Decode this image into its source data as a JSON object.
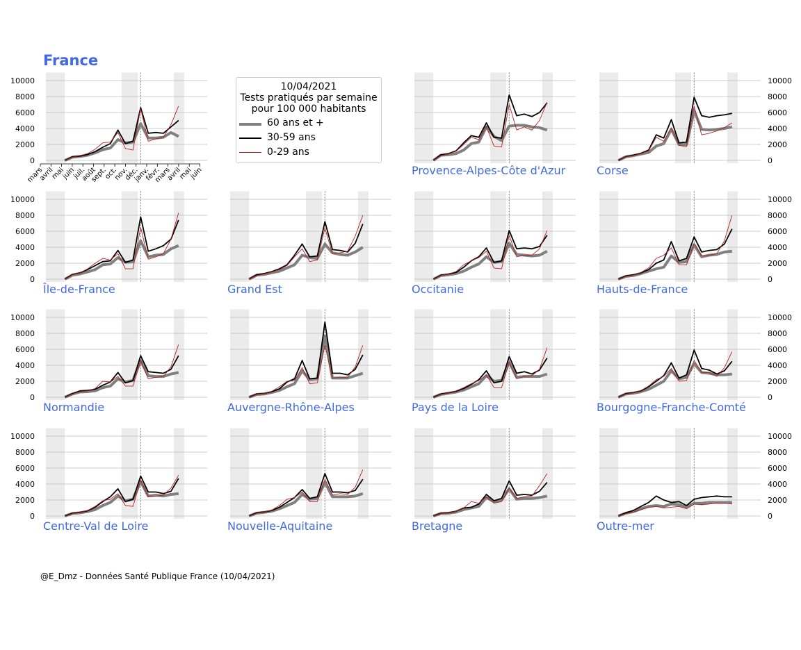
{
  "title": "France",
  "legend": {
    "date": "10/04/2021",
    "line1": "Tests pratiqués par semaine",
    "line2": "pour 100 000 habitants",
    "items": [
      {
        "label": "60 ans et +",
        "color": "#808080"
      },
      {
        "label": "30-59 ans",
        "color": "#000000"
      },
      {
        "label": "0-29 ans",
        "color": "#b22222"
      }
    ]
  },
  "footer": "@E_Dmz - Données Santé Publique France (10/04/2021)",
  "colors": {
    "title": "#4169e1",
    "shade": "#ebebeb",
    "grid": "#bbbbbb",
    "older": "#808080",
    "mid": "#000000",
    "young": "#b22222"
  },
  "chart_data": {
    "type": "line",
    "ylim": [
      0,
      11000
    ],
    "yticks": [
      "0",
      "2000",
      "4000",
      "6000",
      "8000",
      "10000"
    ],
    "month_ticks": [
      "mars",
      "avril",
      "mai",
      "juin",
      "juil.",
      "août",
      "sept.",
      "oct.",
      "nov.",
      "déc.",
      "janv.",
      "févr.",
      "mars",
      "avril",
      "mai",
      "juin"
    ],
    "x_months": [
      "mars",
      "mai",
      "juil.",
      "sept.",
      "nov.",
      "janv.",
      "mars",
      "mai"
    ],
    "series_names": [
      "60 ans et +",
      "30-59 ans",
      "0-29 ans"
    ],
    "panels": [
      {
        "name": "France",
        "label_shown": false,
        "s60": [
          0,
          400,
          500,
          650,
          950,
          1350,
          1550,
          2600,
          2200,
          2300,
          4600,
          2800,
          2800,
          2900,
          3500,
          3000
        ],
        "s30": [
          0,
          450,
          550,
          750,
          1100,
          1650,
          2100,
          3800,
          2100,
          2400,
          6600,
          3400,
          3500,
          3400,
          4200,
          5000
        ],
        "s0": [
          0,
          400,
          600,
          850,
          1400,
          2200,
          2300,
          3500,
          1500,
          1300,
          6500,
          2400,
          2700,
          2900,
          4500,
          6800
        ]
      },
      {
        "name": "Provence-Alpes-Côte d'Azur",
        "label_shown": true,
        "s60": [
          0,
          650,
          700,
          850,
          1300,
          2100,
          2300,
          4200,
          3000,
          2500,
          4300,
          4400,
          4400,
          4200,
          4100,
          3800
        ],
        "s30": [
          0,
          700,
          850,
          1200,
          2200,
          3100,
          2900,
          4700,
          2900,
          2800,
          8200,
          5600,
          5800,
          5500,
          6000,
          7200
        ],
        "s0": [
          0,
          600,
          800,
          1150,
          2000,
          2900,
          2600,
          4200,
          1800,
          1700,
          7000,
          3800,
          4200,
          3800,
          5000,
          7300
        ]
      },
      {
        "name": "Corse",
        "label_shown": true,
        "s60": [
          0,
          450,
          600,
          800,
          1000,
          1800,
          2100,
          3900,
          2000,
          2000,
          6200,
          3900,
          3800,
          3900,
          4000,
          4200
        ],
        "s30": [
          0,
          500,
          650,
          900,
          1300,
          3200,
          2800,
          5100,
          2200,
          2300,
          7900,
          5600,
          5400,
          5600,
          5700,
          5900
        ],
        "s0": [
          0,
          500,
          600,
          850,
          1200,
          2900,
          2400,
          4100,
          1900,
          1700,
          6800,
          3200,
          3400,
          3700,
          4100,
          4700
        ]
      },
      {
        "name": "Île-de-France",
        "label_shown": true,
        "s60": [
          0,
          500,
          650,
          900,
          1200,
          1800,
          1900,
          2700,
          2100,
          2200,
          4800,
          2800,
          3000,
          3100,
          3800,
          4200
        ],
        "s30": [
          0,
          600,
          800,
          1200,
          1700,
          2200,
          2300,
          3600,
          2100,
          2400,
          7800,
          3500,
          3800,
          4200,
          5000,
          7400
        ],
        "s0": [
          0,
          550,
          800,
          1300,
          2000,
          2600,
          2400,
          3200,
          1300,
          1300,
          6500,
          2500,
          2800,
          3200,
          5000,
          8300
        ]
      },
      {
        "name": "Grand Est",
        "label_shown": true,
        "s60": [
          0,
          500,
          600,
          800,
          1000,
          1400,
          1800,
          3000,
          2700,
          2600,
          4400,
          3300,
          3100,
          3000,
          3400,
          4000
        ],
        "s30": [
          0,
          550,
          700,
          950,
          1300,
          1800,
          3000,
          4400,
          2800,
          2900,
          7200,
          3700,
          3600,
          3400,
          4500,
          6900
        ],
        "s0": [
          0,
          450,
          650,
          900,
          1200,
          1700,
          2800,
          3800,
          2200,
          2400,
          6400,
          3200,
          3300,
          3500,
          5400,
          8000
        ]
      },
      {
        "name": "Occitanie",
        "label_shown": true,
        "s60": [
          0,
          450,
          550,
          700,
          1000,
          1500,
          1900,
          2800,
          2100,
          2200,
          4500,
          3100,
          3000,
          2900,
          3000,
          3500
        ],
        "s30": [
          0,
          500,
          650,
          850,
          1500,
          2300,
          2800,
          3900,
          2100,
          2300,
          6100,
          3800,
          3900,
          3800,
          4100,
          5500
        ],
        "s0": [
          0,
          450,
          650,
          950,
          1800,
          2300,
          2700,
          3500,
          1400,
          1300,
          5500,
          2800,
          3000,
          3000,
          3800,
          6100
        ]
      },
      {
        "name": "Hauts-de-France",
        "label_shown": true,
        "s60": [
          0,
          350,
          450,
          700,
          1000,
          1300,
          1500,
          2900,
          2100,
          2200,
          4300,
          2800,
          3000,
          3100,
          3400,
          3500
        ],
        "s30": [
          0,
          400,
          550,
          800,
          1200,
          2000,
          2400,
          4700,
          2300,
          2600,
          5300,
          3400,
          3600,
          3700,
          4400,
          6300
        ],
        "s0": [
          0,
          350,
          500,
          850,
          1400,
          2600,
          3000,
          3900,
          1800,
          1800,
          4500,
          2900,
          3000,
          3200,
          4800,
          8000
        ]
      },
      {
        "name": "Normandie",
        "label_shown": true,
        "s60": [
          0,
          400,
          650,
          700,
          800,
          1200,
          1400,
          2300,
          1900,
          2100,
          4600,
          2700,
          2600,
          2600,
          2900,
          3100
        ],
        "s30": [
          0,
          450,
          800,
          850,
          1000,
          1500,
          1900,
          3100,
          1800,
          2100,
          5200,
          3200,
          3100,
          3000,
          3500,
          5200
        ],
        "s0": [
          0,
          400,
          700,
          800,
          1100,
          2000,
          1900,
          2600,
          1400,
          1400,
          4600,
          2300,
          2500,
          2600,
          3800,
          6600
        ]
      },
      {
        "name": "Auvergne-Rhône-Alpes",
        "label_shown": true,
        "s60": [
          0,
          350,
          400,
          600,
          850,
          1300,
          1700,
          3300,
          2200,
          2300,
          7700,
          2400,
          2400,
          2400,
          2700,
          3000
        ],
        "s30": [
          0,
          400,
          480,
          700,
          1050,
          1900,
          2300,
          4600,
          2300,
          2400,
          9400,
          3000,
          3000,
          2800,
          3500,
          5300
        ],
        "s0": [
          0,
          350,
          460,
          750,
          1300,
          2000,
          2100,
          3700,
          1700,
          1800,
          6500,
          2400,
          2500,
          2500,
          3800,
          6500
        ]
      },
      {
        "name": "Pays de la Loire",
        "label_shown": true,
        "s60": [
          0,
          350,
          500,
          650,
          900,
          1300,
          1700,
          2700,
          2000,
          2100,
          4400,
          2500,
          2600,
          2600,
          2600,
          2900
        ],
        "s30": [
          0,
          400,
          560,
          750,
          1100,
          1600,
          2200,
          3300,
          1800,
          2000,
          5100,
          3000,
          3200,
          2900,
          3400,
          4900
        ],
        "s0": [
          0,
          350,
          550,
          800,
          1200,
          1700,
          2100,
          2800,
          1200,
          1200,
          4400,
          2300,
          2600,
          2700,
          3500,
          6200
        ]
      },
      {
        "name": "Bourgogne-Franche-Comté",
        "label_shown": true,
        "s60": [
          0,
          400,
          500,
          700,
          1000,
          1500,
          2000,
          3300,
          2300,
          2500,
          4200,
          3100,
          3000,
          2800,
          2800,
          2900
        ],
        "s30": [
          0,
          450,
          580,
          800,
          1300,
          2000,
          2700,
          4300,
          2400,
          2800,
          5900,
          3600,
          3400,
          2900,
          3300,
          4500
        ],
        "s0": [
          0,
          400,
          550,
          850,
          1400,
          2200,
          2600,
          3600,
          2000,
          2100,
          4600,
          3100,
          3100,
          2600,
          3700,
          5700
        ]
      },
      {
        "name": "Centre-Val de Loire",
        "label_shown": true,
        "s60": [
          0,
          300,
          400,
          550,
          800,
          1300,
          1700,
          2500,
          1900,
          2100,
          4300,
          2500,
          2600,
          2500,
          2700,
          2800
        ],
        "s30": [
          0,
          350,
          450,
          650,
          1100,
          1800,
          2400,
          3400,
          1800,
          2100,
          5000,
          3000,
          3000,
          2800,
          3100,
          4700
        ],
        "s0": [
          0,
          300,
          450,
          700,
          1200,
          1900,
          2100,
          2800,
          1300,
          1200,
          4500,
          2400,
          2500,
          2600,
          3500,
          5100
        ]
      },
      {
        "name": "Nouvelle-Aquitaine",
        "label_shown": true,
        "s60": [
          0,
          350,
          450,
          600,
          900,
          1300,
          1700,
          2700,
          2100,
          2200,
          4200,
          2400,
          2400,
          2400,
          2500,
          2800
        ],
        "s30": [
          0,
          400,
          500,
          700,
          1100,
          1700,
          2300,
          3300,
          2200,
          2400,
          5300,
          3000,
          3000,
          2900,
          3200,
          4600
        ],
        "s0": [
          0,
          350,
          500,
          750,
          1300,
          2100,
          2300,
          3000,
          1800,
          1800,
          4600,
          2600,
          2800,
          2700,
          3600,
          5800
        ]
      },
      {
        "name": "Bretagne",
        "label_shown": true,
        "s60": [
          0,
          300,
          350,
          500,
          800,
          1000,
          1200,
          2300,
          1800,
          2000,
          3400,
          2100,
          2200,
          2200,
          2300,
          2500
        ],
        "s30": [
          0,
          350,
          400,
          600,
          1000,
          1100,
          1500,
          2700,
          1900,
          2200,
          4400,
          2600,
          2700,
          2600,
          3100,
          4200
        ],
        "s0": [
          0,
          320,
          380,
          600,
          1000,
          1800,
          1600,
          2400,
          1600,
          1800,
          3500,
          2200,
          2400,
          2500,
          3800,
          5300
        ]
      },
      {
        "name": "Outre-mer",
        "label_shown": true,
        "s60": [
          0,
          350,
          550,
          900,
          1200,
          1300,
          1200,
          1500,
          1400,
          1100,
          1600,
          1600,
          1700,
          1700,
          1700,
          1700
        ],
        "s30": [
          0,
          400,
          700,
          1200,
          1700,
          2500,
          2000,
          1700,
          1800,
          1300,
          2100,
          2300,
          2400,
          2500,
          2400,
          2400
        ],
        "s0": [
          0,
          300,
          500,
          800,
          1100,
          1200,
          1000,
          1100,
          1200,
          900,
          1500,
          1400,
          1500,
          1600,
          1600,
          1500
        ]
      }
    ]
  }
}
